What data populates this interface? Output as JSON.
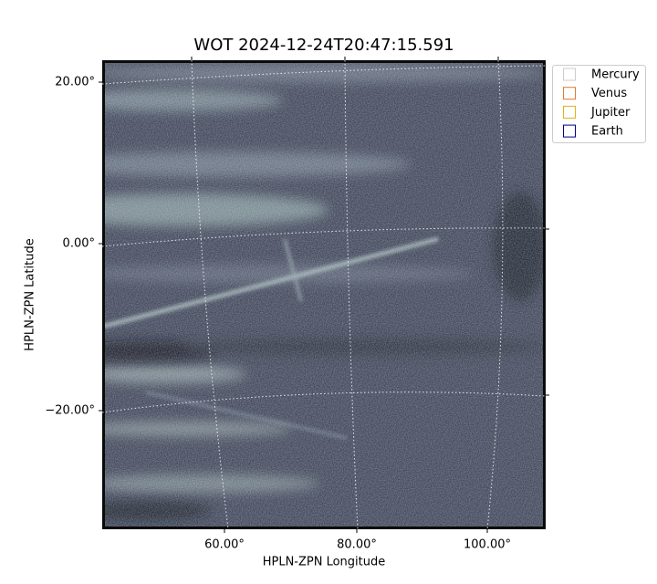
{
  "title": "WOT 2024-12-24T20:47:15.591",
  "x_axis": {
    "label": "HPLN-ZPN Longitude",
    "ticks": [
      "60.00°",
      "80.00°",
      "100.00°"
    ]
  },
  "y_axis": {
    "label": "HPLN-ZPN Latitude",
    "ticks": [
      "20.00°",
      "0.00°",
      "−20.00°"
    ]
  },
  "legend": [
    {
      "label": "Mercury",
      "color": "#cccccc"
    },
    {
      "label": "Venus",
      "color": "#e07a30"
    },
    {
      "label": "Jupiter",
      "color": "#e0b020"
    },
    {
      "label": "Earth",
      "color": "#000080"
    }
  ]
}
